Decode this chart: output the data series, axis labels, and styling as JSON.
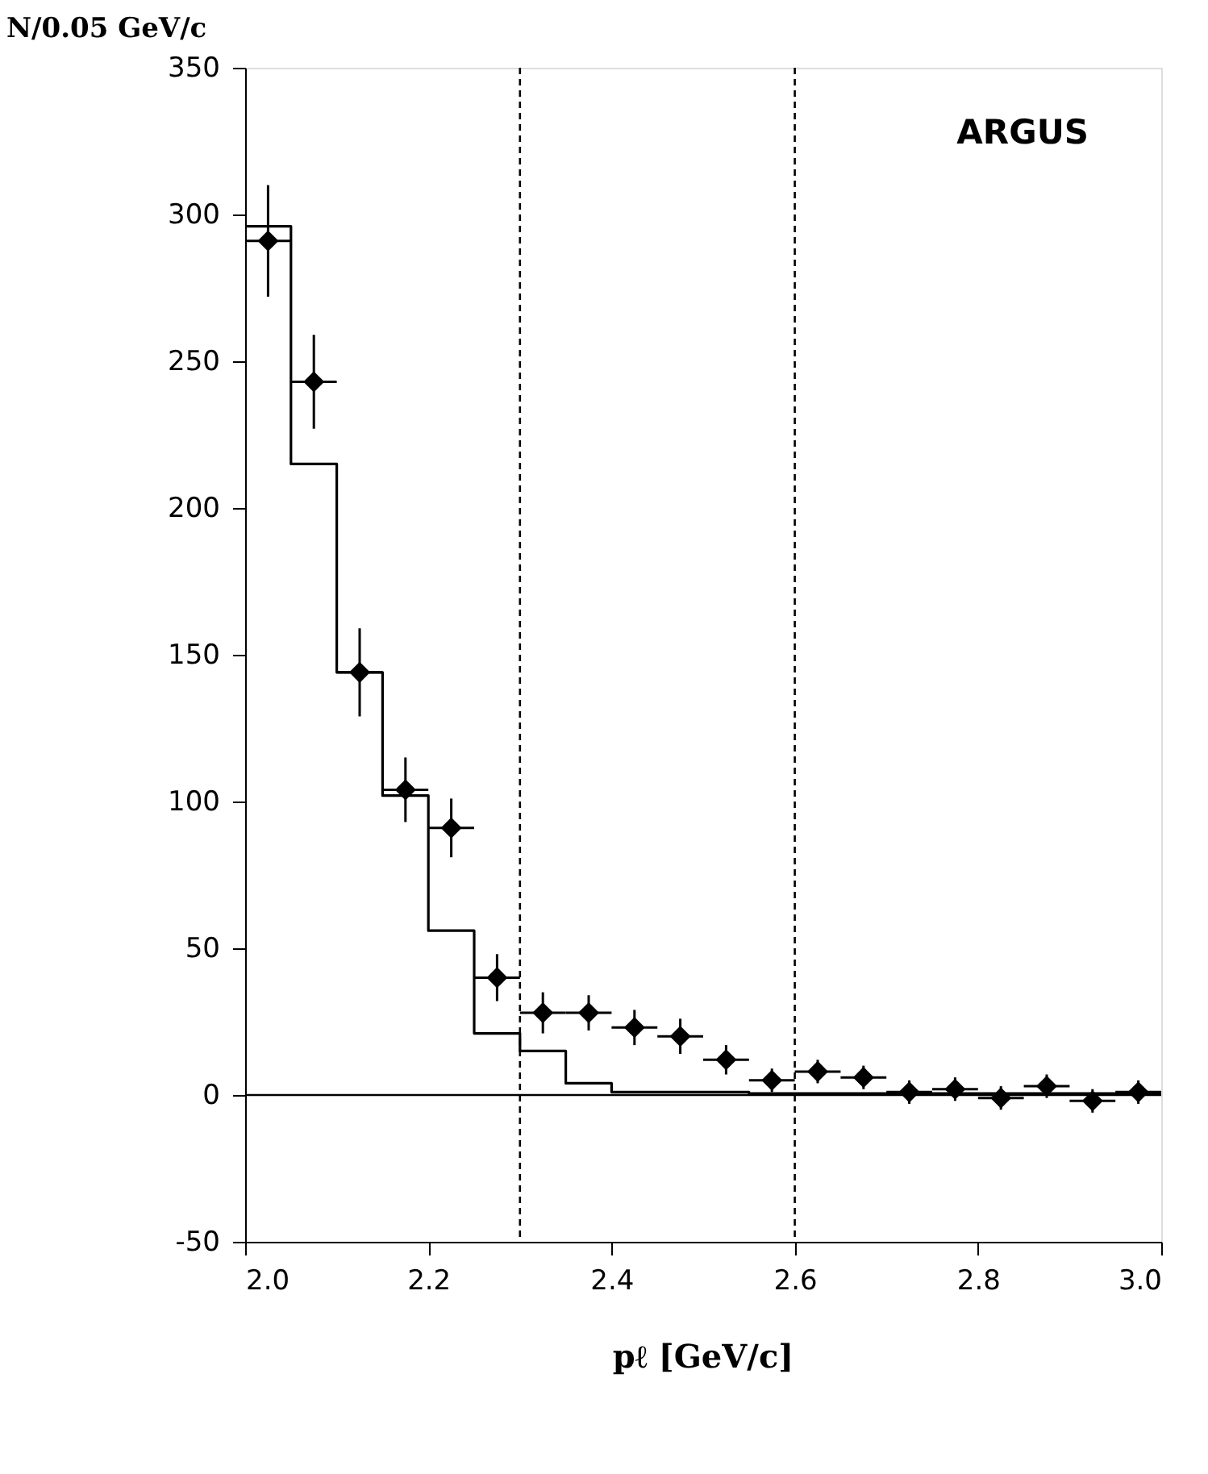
{
  "chart_data": {
    "type": "scatter",
    "xlabel": "pℓ [GeV/c]",
    "ylabel": "N/0.05 GeV/c",
    "xlim": [
      2.0,
      3.0
    ],
    "xticks": [
      {
        "value": 2.0,
        "label": "2.0"
      },
      2.2,
      2.4,
      2.6,
      2.8,
      {
        "value": 3.0,
        "label": "3.0"
      }
    ],
    "ylim": [
      -50,
      350
    ],
    "yticks": [
      -50,
      0,
      50,
      100,
      150,
      200,
      250,
      300,
      350
    ],
    "grid": false,
    "marker": "diamond",
    "annotations": [
      "ARGUS"
    ],
    "ref_lines": [
      {
        "axis": "x",
        "value": 2.3,
        "line_style": "dashed",
        "color": "#000000"
      },
      {
        "axis": "x",
        "value": 2.6,
        "line_style": "dashed",
        "color": "#000000"
      },
      {
        "axis": "y",
        "value": 0,
        "line_style": "solid",
        "color": "#000000"
      }
    ],
    "series": [
      {
        "type": "step",
        "color": "#000000",
        "line_style": "solid",
        "marker": "none",
        "x": [
          2.0,
          2.05,
          2.1,
          2.15,
          2.2,
          2.25,
          2.3,
          2.35,
          2.4,
          2.45,
          2.5,
          2.55,
          2.6,
          2.65,
          2.7,
          2.75,
          2.8,
          2.85,
          2.9,
          2.95,
          3.0
        ],
        "values": [
          296,
          215,
          144,
          102,
          56,
          21,
          15,
          4,
          1,
          1,
          1,
          0.5,
          0.5,
          0.5,
          0.5,
          0.5,
          0.5,
          0.5,
          0.5,
          0.5,
          0.5
        ]
      },
      {
        "color": "#000000",
        "x": [
          2.025,
          2.075,
          2.125,
          2.175,
          2.225,
          2.275,
          2.325,
          2.375,
          2.425,
          2.475,
          2.525,
          2.575,
          2.625,
          2.675,
          2.725,
          2.775,
          2.825,
          2.875,
          2.925,
          2.975
        ],
        "values": [
          291,
          243,
          144,
          104,
          91,
          40,
          28,
          28,
          23,
          20,
          12,
          5,
          8,
          6,
          1,
          2,
          -1,
          3,
          -2,
          1
        ],
        "errors": [
          19,
          16,
          15,
          11,
          10,
          8,
          7,
          6,
          6,
          6,
          5,
          4,
          4,
          4,
          4,
          4,
          4,
          4,
          4,
          4
        ],
        "xerrors": [
          0.025,
          0.025,
          0.025,
          0.025,
          0.025,
          0.025,
          0.025,
          0.025,
          0.025,
          0.025,
          0.025,
          0.025,
          0.025,
          0.025,
          0.025,
          0.025,
          0.025,
          0.025,
          0.025,
          0.025
        ]
      }
    ]
  }
}
